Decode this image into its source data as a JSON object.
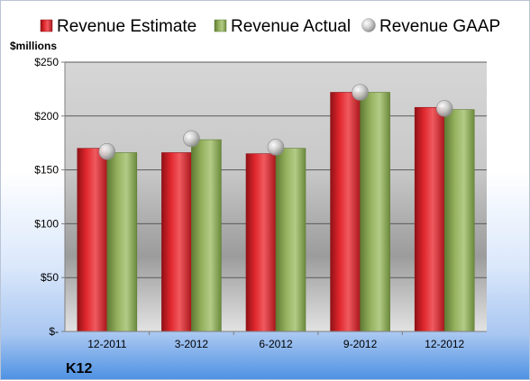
{
  "chart_data": {
    "type": "bar",
    "ylabel": "$millions",
    "company": "K12",
    "ylim": [
      0,
      250
    ],
    "y_ticks": [
      0,
      50,
      100,
      150,
      200,
      250
    ],
    "y_tick_labels": [
      "$-",
      "$50",
      "$100",
      "$150",
      "$200",
      "$250"
    ],
    "categories": [
      "12-2011",
      "3-2012",
      "6-2012",
      "9-2012",
      "12-2012"
    ],
    "series": [
      {
        "name": "Revenue Estimate",
        "type": "bar",
        "color": "#d9232a",
        "values": [
          170,
          166,
          165,
          222,
          208
        ]
      },
      {
        "name": "Revenue Actual",
        "type": "bar",
        "color": "#8fac5a",
        "values": [
          166,
          178,
          170,
          222,
          206
        ]
      },
      {
        "name": "Revenue GAAP",
        "type": "marker",
        "color": "#c8c8c8",
        "values": [
          167,
          179,
          171,
          222,
          207
        ]
      }
    ],
    "grid": true,
    "legend_position": "top"
  }
}
